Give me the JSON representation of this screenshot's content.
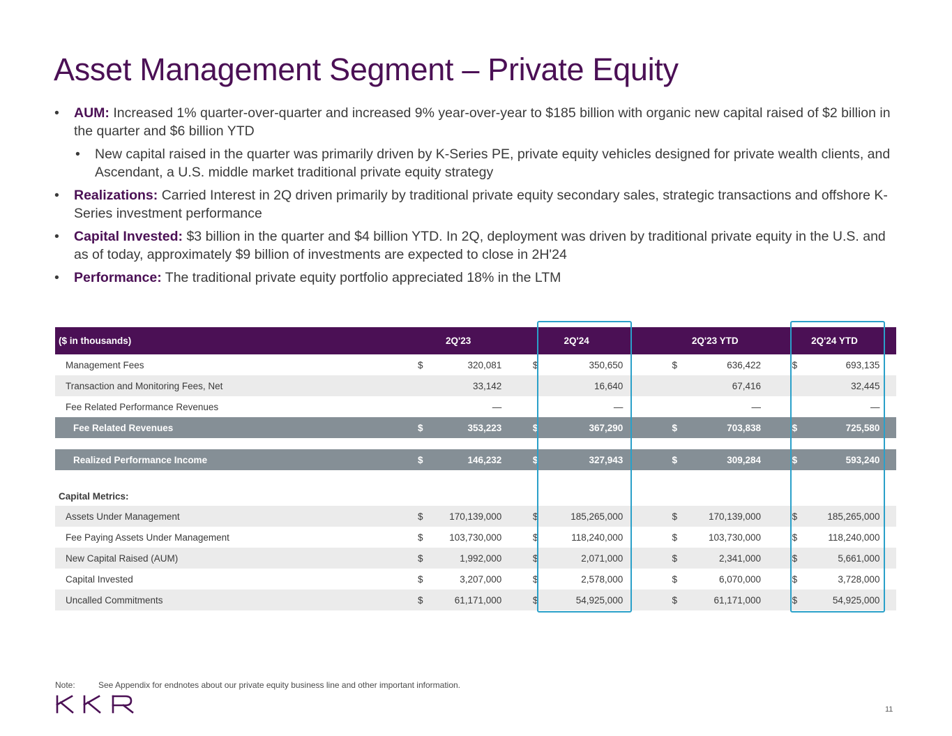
{
  "title": "Asset Management Segment – Private Equity",
  "bullets": [
    {
      "label": "AUM:",
      "text": " Increased 1% quarter-over-quarter and increased 9% year-over-year to $185 billion with organic new capital raised of $2 billion in the quarter and $6 billion YTD"
    },
    {
      "label": "",
      "text": "New capital raised in the quarter was primarily driven by K-Series PE, private equity vehicles designed for private wealth clients, and Ascendant, a U.S. middle market traditional private equity strategy"
    },
    {
      "label": "Realizations:",
      "text": " Carried Interest in 2Q driven primarily by traditional private equity secondary sales, strategic transactions and offshore K-Series investment performance"
    },
    {
      "label": "Capital Invested:",
      "text": " $3 billion in the quarter and $4 billion YTD. In 2Q, deployment was driven by traditional private equity in the U.S. and as of today, approximately $9 billion of investments are expected to close in 2H'24"
    },
    {
      "label": "Performance:",
      "text": " The traditional private equity portfolio appreciated 18% in the LTM"
    }
  ],
  "table": {
    "header": {
      "label": "($ in thousands)",
      "c1": "2Q'23",
      "c2": "2Q'24",
      "c3": "2Q'23 YTD",
      "c4": "2Q'24 YTD"
    },
    "rows": [
      {
        "label": "Management Fees",
        "d1": "$",
        "v1": "320,081",
        "d2": "$",
        "v2": "350,650",
        "d3": "$",
        "v3": "636,422",
        "d4": "$",
        "v4": "693,135"
      },
      {
        "label": "Transaction and Monitoring Fees, Net",
        "d1": "",
        "v1": "33,142",
        "d2": "",
        "v2": "16,640",
        "d3": "",
        "v3": "67,416",
        "d4": "",
        "v4": "32,445"
      },
      {
        "label": "Fee Related Performance Revenues",
        "d1": "",
        "v1": "—",
        "d2": "",
        "v2": "—",
        "d3": "",
        "v3": "—",
        "d4": "",
        "v4": "—"
      },
      {
        "label": "Fee Related Revenues",
        "d1": "$",
        "v1": "353,223",
        "d2": "$",
        "v2": "367,290",
        "d3": "$",
        "v3": "703,838",
        "d4": "$",
        "v4": "725,580"
      },
      {
        "label": "Realized Performance Income",
        "d1": "$",
        "v1": "146,232",
        "d2": "$",
        "v2": "327,943",
        "d3": "$",
        "v3": "309,284",
        "d4": "$",
        "v4": "593,240"
      }
    ],
    "section_label": "Capital Metrics:",
    "metrics": [
      {
        "label": "Assets Under Management",
        "d1": "$",
        "v1": "170,139,000",
        "d2": "$",
        "v2": "185,265,000",
        "d3": "$",
        "v3": "170,139,000",
        "d4": "$",
        "v4": "185,265,000"
      },
      {
        "label": "Fee Paying Assets Under Management",
        "d1": "$",
        "v1": "103,730,000",
        "d2": "$",
        "v2": "118,240,000",
        "d3": "$",
        "v3": "103,730,000",
        "d4": "$",
        "v4": "118,240,000"
      },
      {
        "label": "New Capital Raised (AUM)",
        "d1": "$",
        "v1": "1,992,000",
        "d2": "$",
        "v2": "2,071,000",
        "d3": "$",
        "v3": "2,341,000",
        "d4": "$",
        "v4": "5,661,000"
      },
      {
        "label": "Capital Invested",
        "d1": "$",
        "v1": "3,207,000",
        "d2": "$",
        "v2": "2,578,000",
        "d3": "$",
        "v3": "6,070,000",
        "d4": "$",
        "v4": "3,728,000"
      },
      {
        "label": "Uncalled Commitments",
        "d1": "$",
        "v1": "61,171,000",
        "d2": "$",
        "v2": "54,925,000",
        "d3": "$",
        "v3": "61,171,000",
        "d4": "$",
        "v4": "54,925,000"
      }
    ]
  },
  "note": {
    "label": "Note:",
    "text": "See Appendix for endnotes about our private equity business line and other important information."
  },
  "logo_text": "KKR",
  "page_number": "11",
  "colors": {
    "brand_purple": "#4b1055",
    "highlight_blue": "#2aa0c9",
    "row_gray": "#858f96",
    "row_shade": "#ebebeb"
  }
}
